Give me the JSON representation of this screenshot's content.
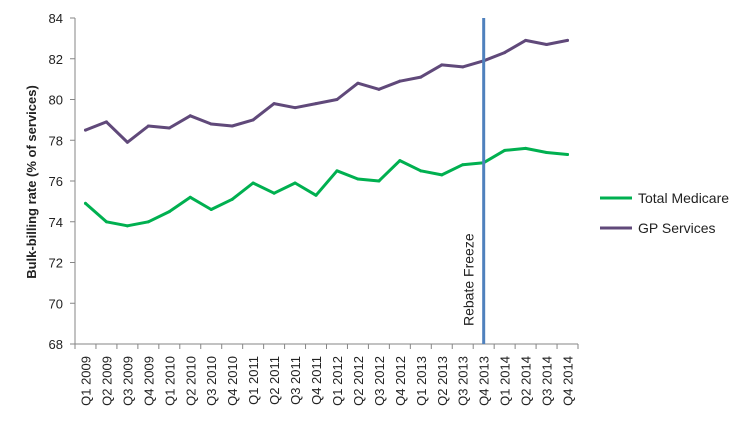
{
  "chart_data": {
    "type": "line",
    "title": "",
    "xlabel": "",
    "ylabel": "Bulk-billing rate (% of services)",
    "ylim": [
      68,
      84
    ],
    "yticks": [
      68,
      70,
      72,
      74,
      76,
      78,
      80,
      82,
      84
    ],
    "grid": false,
    "legend_position": "right",
    "categories": [
      "Q1 2009",
      "Q2 2009",
      "Q3 2009",
      "Q4 2009",
      "Q1 2010",
      "Q2 2010",
      "Q3 2010",
      "Q4 2010",
      "Q1 2011",
      "Q2 2011",
      "Q3 2011",
      "Q4 2011",
      "Q1 2012",
      "Q2 2012",
      "Q3 2012",
      "Q4 2012",
      "Q1 2013",
      "Q2 2013",
      "Q3 2013",
      "Q4 2013",
      "Q1 2014",
      "Q2 2014",
      "Q3 2014",
      "Q4 2014"
    ],
    "series": [
      {
        "name": "Total Medicare",
        "color": "#00b050",
        "values": [
          74.9,
          74.0,
          73.8,
          74.0,
          74.5,
          75.2,
          74.6,
          75.1,
          75.9,
          75.4,
          75.9,
          75.3,
          76.5,
          76.1,
          76.0,
          77.0,
          76.5,
          76.3,
          76.8,
          76.9,
          77.5,
          77.6,
          77.4,
          77.3
        ]
      },
      {
        "name": "GP Services",
        "color": "#60497a",
        "values": [
          78.5,
          78.9,
          77.9,
          78.7,
          78.6,
          79.2,
          78.8,
          78.7,
          79.0,
          79.8,
          79.6,
          79.8,
          80.0,
          80.8,
          80.5,
          80.9,
          81.1,
          81.7,
          81.6,
          81.9,
          82.3,
          82.9,
          82.7,
          82.9
        ]
      }
    ],
    "annotations": [
      {
        "text": "Rebate Freeze",
        "category": "Q4 2013",
        "color": "#4f81bd"
      }
    ]
  }
}
